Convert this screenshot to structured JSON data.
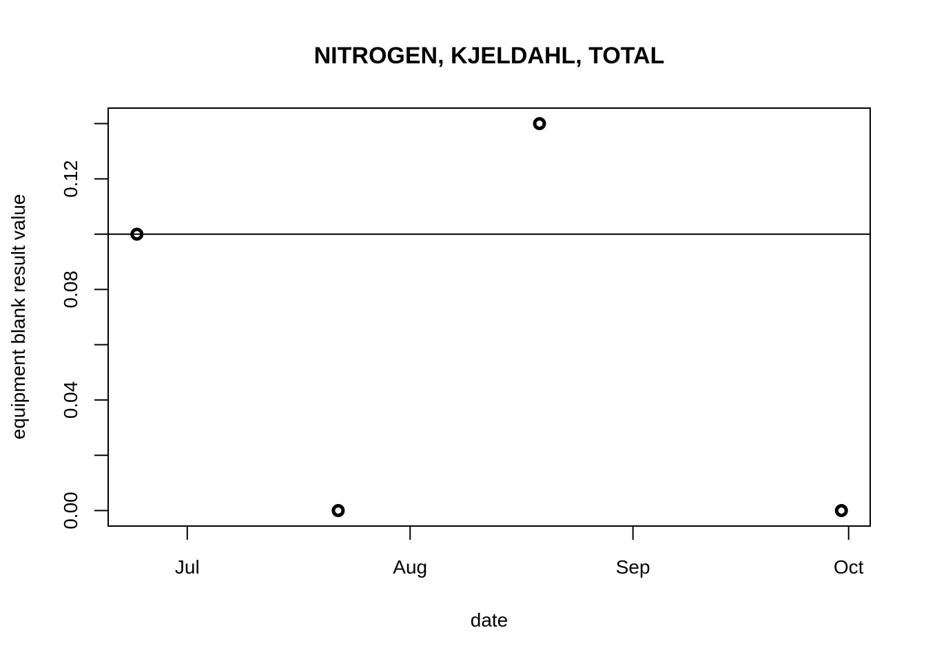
{
  "chart_data": {
    "type": "scatter",
    "title": "NITROGEN, KJELDAHL, TOTAL",
    "xlabel": "date",
    "ylabel": "equipment blank result value",
    "x_axis": {
      "kind": "date",
      "ticks": [
        {
          "date": "2017-07-01",
          "label": "Jul"
        },
        {
          "date": "2017-08-01",
          "label": "Aug"
        },
        {
          "date": "2017-09-01",
          "label": "Sep"
        },
        {
          "date": "2017-10-01",
          "label": "Oct"
        }
      ],
      "range": [
        "2017-06-20",
        "2017-10-04"
      ]
    },
    "y_axis": {
      "ticks": [
        0.0,
        0.04,
        0.08,
        0.12
      ],
      "tick_labels": [
        "0.00",
        "0.04",
        "0.08",
        "0.12"
      ],
      "minor_ticks": [
        0.02,
        0.06,
        0.1,
        0.14
      ],
      "range": [
        -0.0056,
        0.1456
      ]
    },
    "points": [
      {
        "x": "2017-06-24",
        "y": 0.1
      },
      {
        "x": "2017-07-22",
        "y": 0.0
      },
      {
        "x": "2017-08-19",
        "y": 0.14
      },
      {
        "x": "2017-09-30",
        "y": 0.0
      }
    ],
    "reference_line": {
      "y": 0.1
    },
    "grid": false,
    "legend": "none"
  }
}
